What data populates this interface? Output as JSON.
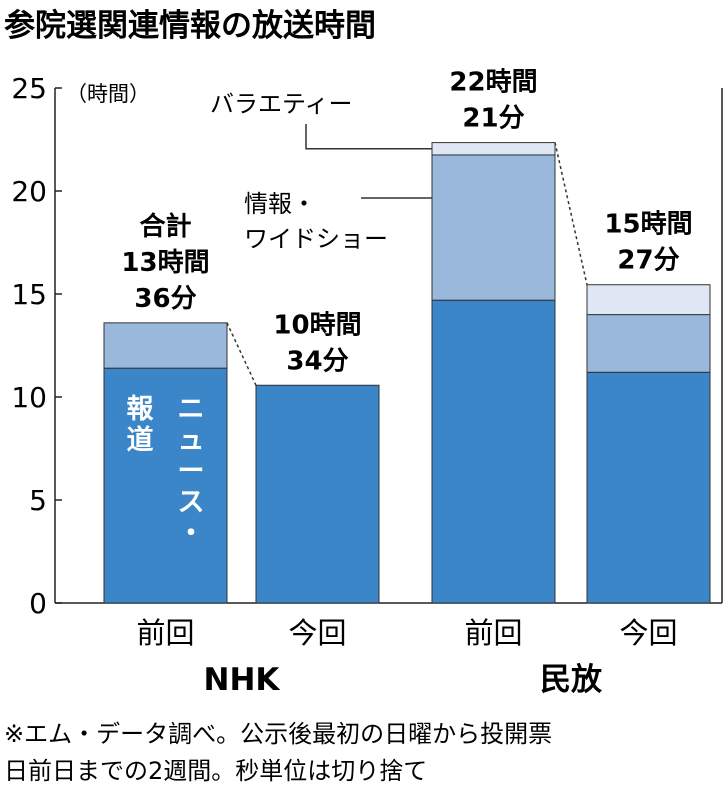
{
  "chart_data": {
    "type": "bar",
    "stacked": true,
    "title": "参院選関連情報の放送時間",
    "ylabel": "（時間）",
    "ylim": [
      0,
      25
    ],
    "yticks": [
      0,
      5,
      10,
      15,
      20,
      25
    ],
    "grid": false,
    "groups": [
      "NHK",
      "民放"
    ],
    "categories": [
      "前回",
      "今回",
      "前回",
      "今回"
    ],
    "category_group": [
      0,
      0,
      1,
      1
    ],
    "series": [
      {
        "name": "ニュース・報道",
        "color": "#3a86c8",
        "values": [
          11.4,
          10.57,
          14.7,
          11.2
        ]
      },
      {
        "name": "情報・ワイドショー",
        "color": "#9ab7dc",
        "values": [
          2.2,
          0,
          7.05,
          2.8
        ]
      },
      {
        "name": "バラエティー",
        "color": "#dfe7f4",
        "values": [
          0,
          0,
          0.6,
          1.45
        ]
      }
    ],
    "totals": [
      13.6,
      10.57,
      22.35,
      15.45
    ],
    "total_labels": [
      [
        "合計",
        "13時間",
        "36分"
      ],
      [
        "10時間",
        "34分"
      ],
      [
        "22時間",
        "21分"
      ],
      [
        "15時間",
        "27分"
      ]
    ],
    "annotations": [
      "バラエティー",
      "情報・",
      "ワイドショー"
    ],
    "inbar_label_lines": [
      "ニュース・",
      "報道"
    ]
  },
  "footnote": [
    "※エム・データ調べ。公示後最初の日曜から投開票",
    "日前日までの2週間。秒単位は切り捨て"
  ]
}
